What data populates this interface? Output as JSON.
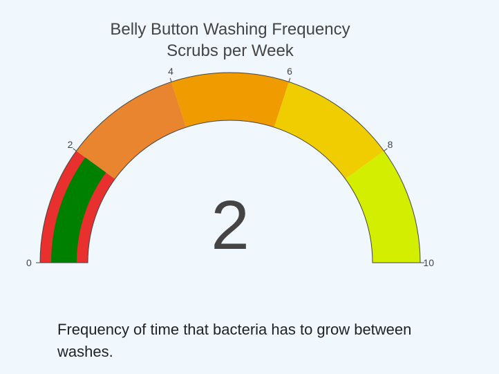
{
  "chart_data": {
    "type": "gauge",
    "title": "Belly Button Washing Frequency",
    "subtitle": "Scrubs per Week",
    "value": 2,
    "value_label": "2",
    "range": [
      0,
      10
    ],
    "tick_values": [
      0,
      2,
      4,
      6,
      8,
      10
    ],
    "tick_labels": [
      "0",
      "2",
      "4",
      "6",
      "8",
      "10"
    ],
    "steps": [
      {
        "range": [
          0,
          2
        ],
        "color": "#e8302e"
      },
      {
        "range": [
          2,
          4
        ],
        "color": "#e8852e"
      },
      {
        "range": [
          4,
          6
        ],
        "color": "#f09c00"
      },
      {
        "range": [
          6,
          8
        ],
        "color": "#f0cd00"
      },
      {
        "range": [
          8,
          10
        ],
        "color": "#d4ee00"
      }
    ],
    "bar_color": "#008000"
  },
  "caption": "Frequency of time that bacteria has to grow between washes."
}
